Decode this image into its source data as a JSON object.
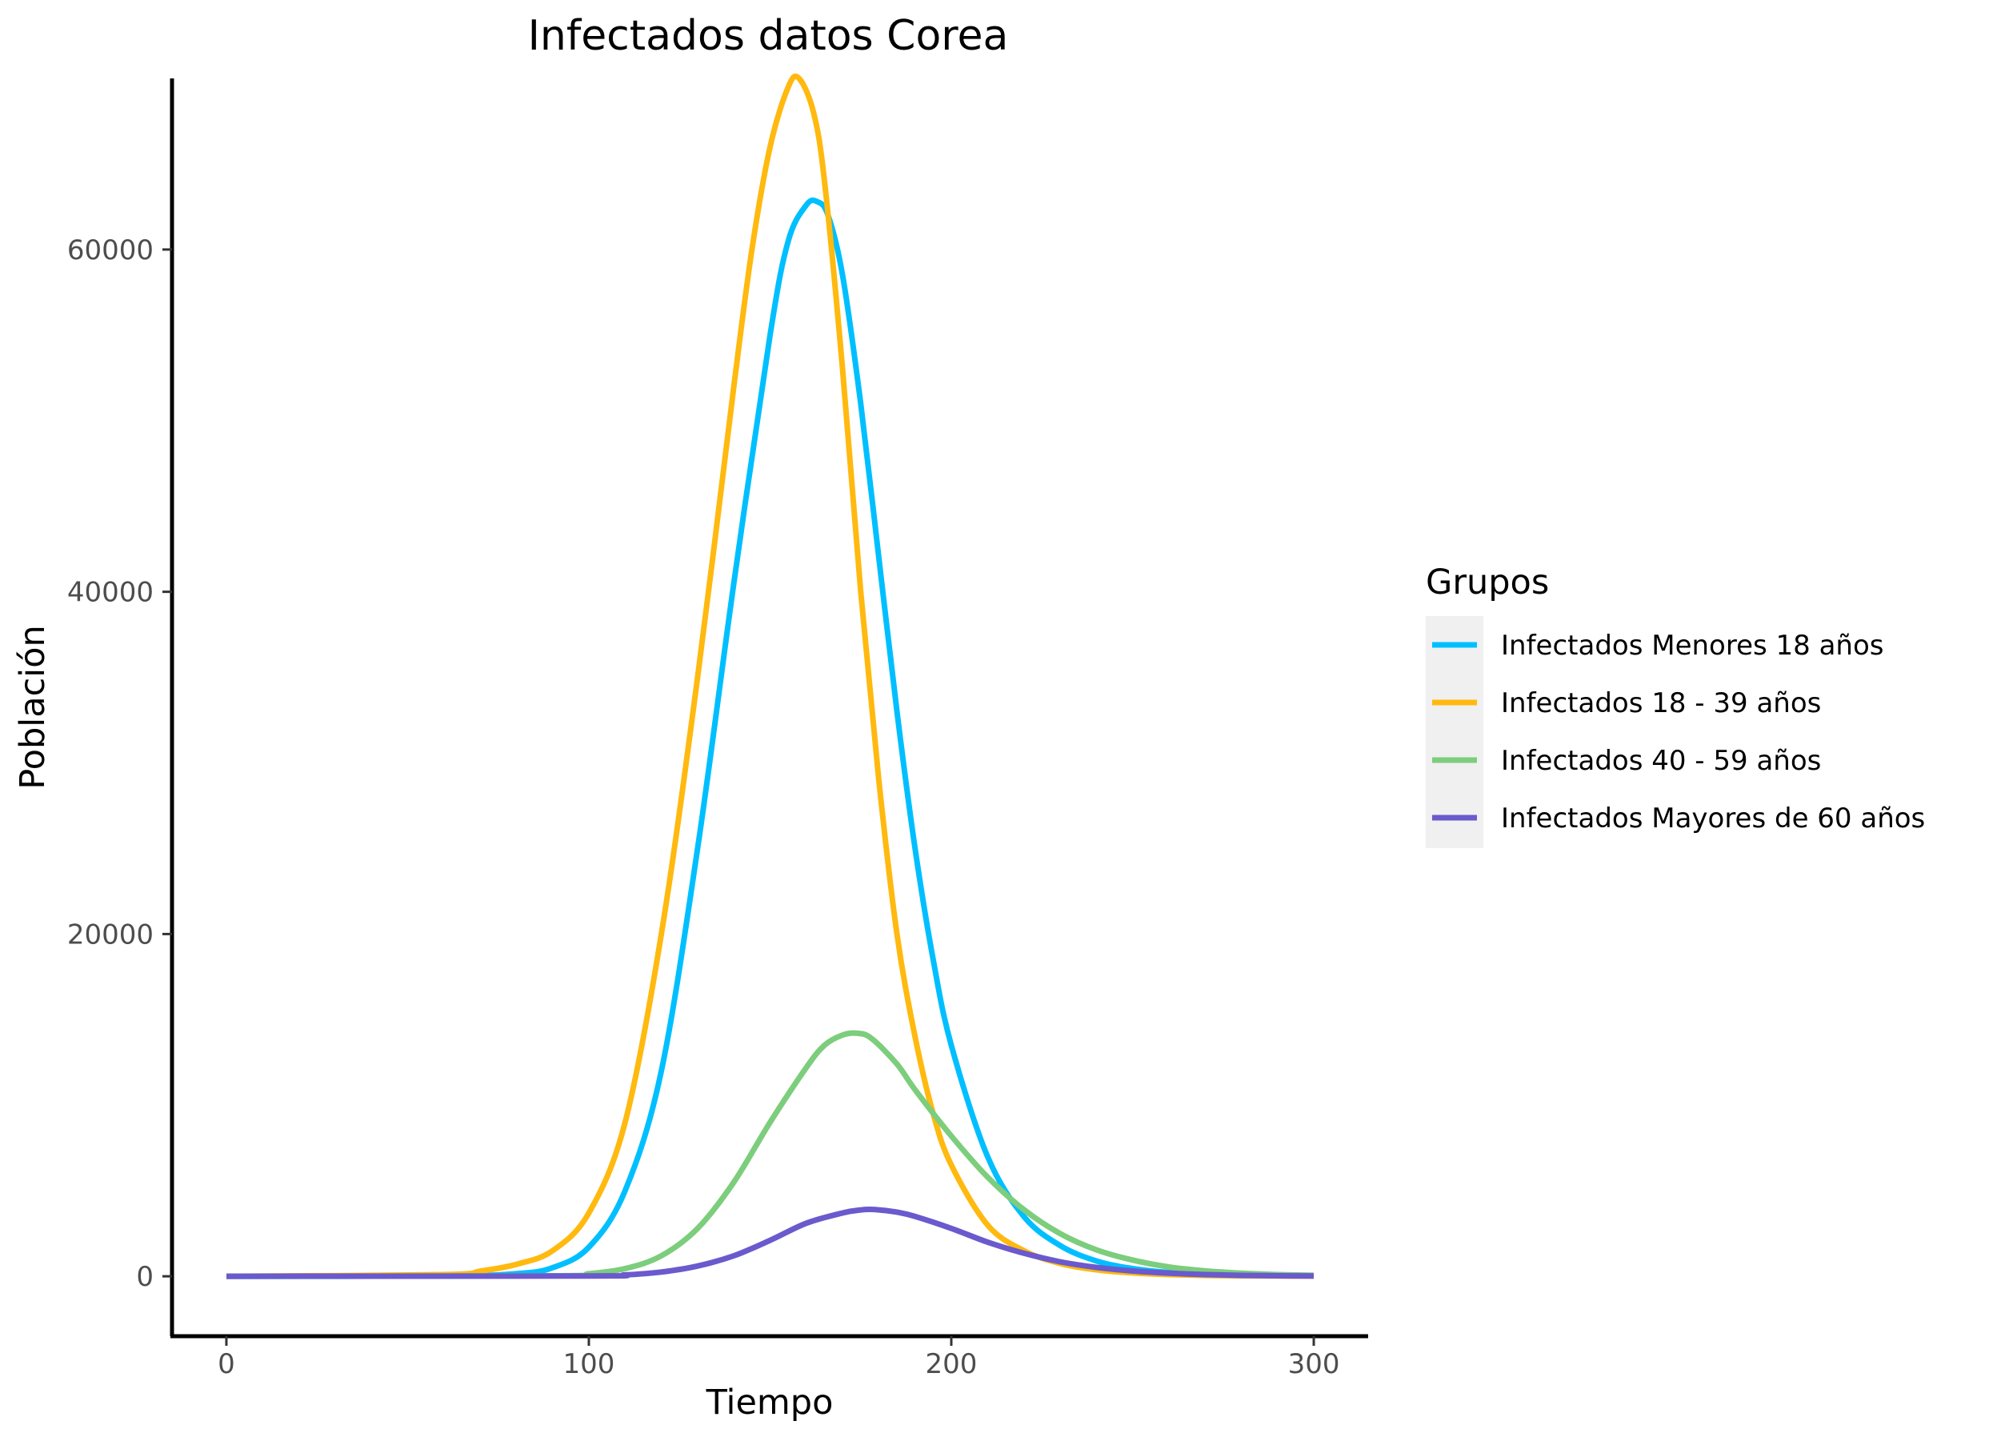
{
  "chart_data": {
    "type": "line",
    "title": "Infectados datos Corea",
    "xlabel": "Tiempo",
    "ylabel": "Población",
    "xlim": [
      -15,
      315
    ],
    "ylim": [
      -3500,
      70000
    ],
    "xticks": [
      0,
      100,
      200,
      300
    ],
    "yticks": [
      0,
      20000,
      40000,
      60000
    ],
    "xtick_labels": [
      "0",
      "100",
      "200",
      "300"
    ],
    "ytick_labels": [
      "0",
      "20000",
      "40000",
      "60000"
    ],
    "grid": false,
    "legend": {
      "title": "Grupos",
      "position": "right"
    },
    "series": [
      {
        "name": "Infectados Menores 18 años",
        "color": "#00BFFF",
        "peak": 62800,
        "x": [
          0,
          60,
          80,
          90,
          100,
          110,
          120,
          130,
          140,
          150,
          155,
          160,
          163,
          166,
          170,
          175,
          180,
          185,
          190,
          195,
          200,
          210,
          220,
          230,
          240,
          250,
          260,
          270,
          280,
          290,
          300
        ],
        "values": [
          0,
          20,
          150,
          500,
          1700,
          5000,
          12000,
          25000,
          40500,
          55000,
          60500,
          62600,
          62800,
          62000,
          58500,
          51000,
          42000,
          33000,
          25000,
          18500,
          13500,
          7000,
          3500,
          1800,
          900,
          450,
          220,
          110,
          60,
          30,
          15
        ]
      },
      {
        "name": "Infectados 18 - 39 años",
        "color": "#FFB90F",
        "peak": 70000,
        "x": [
          0,
          60,
          70,
          80,
          90,
          100,
          110,
          120,
          130,
          140,
          145,
          150,
          155,
          158,
          162,
          165,
          170,
          175,
          180,
          185,
          190,
          195,
          200,
          210,
          220,
          230,
          240,
          250,
          260,
          270,
          280,
          290,
          300
        ],
        "values": [
          0,
          100,
          300,
          700,
          1500,
          3700,
          9000,
          20000,
          35000,
          52000,
          60000,
          66000,
          69500,
          70000,
          68000,
          64000,
          53000,
          40000,
          29000,
          20000,
          14000,
          9500,
          6500,
          3000,
          1500,
          750,
          380,
          200,
          100,
          50,
          25,
          15,
          10
        ]
      },
      {
        "name": "Infectados 40 - 59 años",
        "color": "#7CCD7C",
        "peak": 14200,
        "x": [
          0,
          90,
          100,
          110,
          120,
          130,
          140,
          150,
          160,
          165,
          170,
          174,
          178,
          185,
          190,
          200,
          210,
          220,
          230,
          240,
          250,
          260,
          270,
          280,
          290,
          300
        ],
        "values": [
          0,
          30,
          150,
          450,
          1200,
          2800,
          5500,
          9000,
          12200,
          13500,
          14100,
          14200,
          13900,
          12400,
          10900,
          8200,
          5800,
          3900,
          2500,
          1550,
          950,
          550,
          320,
          180,
          100,
          60
        ]
      },
      {
        "name": "Infectados Mayores de 60 años",
        "color": "#6A5ACD",
        "peak": 3900,
        "x": [
          0,
          100,
          110,
          120,
          130,
          140,
          150,
          160,
          170,
          175,
          179,
          185,
          190,
          200,
          210,
          220,
          230,
          240,
          250,
          260,
          270,
          280,
          290,
          300
        ],
        "values": [
          0,
          20,
          80,
          250,
          600,
          1200,
          2100,
          3100,
          3700,
          3880,
          3900,
          3750,
          3500,
          2800,
          2000,
          1350,
          850,
          520,
          310,
          180,
          100,
          55,
          30,
          15
        ]
      }
    ]
  }
}
